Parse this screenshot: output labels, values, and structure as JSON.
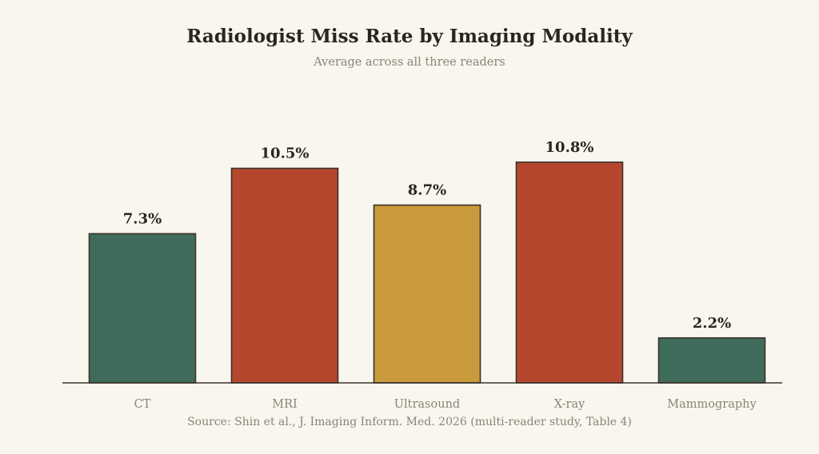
{
  "chart_data": {
    "type": "bar",
    "title": "Radiologist Miss Rate by Imaging Modality",
    "subtitle": "Average across all three readers",
    "source": "Source: Shin et al., J. Imaging Inform. Med. 2026 (multi-reader study, Table 4)",
    "categories": [
      "CT",
      "MRI",
      "Ultrasound",
      "X-ray",
      "Mammography"
    ],
    "values": [
      7.3,
      10.5,
      8.7,
      10.8,
      2.2
    ],
    "value_labels": [
      "7.3%",
      "10.5%",
      "8.7%",
      "10.8%",
      "2.2%"
    ],
    "colors": [
      "#3f6b5a",
      "#b5472f",
      "#c99a3c",
      "#b5472f",
      "#3f6b5a"
    ],
    "ylim": [
      0,
      11.5
    ],
    "grid": false,
    "legend": "none"
  }
}
